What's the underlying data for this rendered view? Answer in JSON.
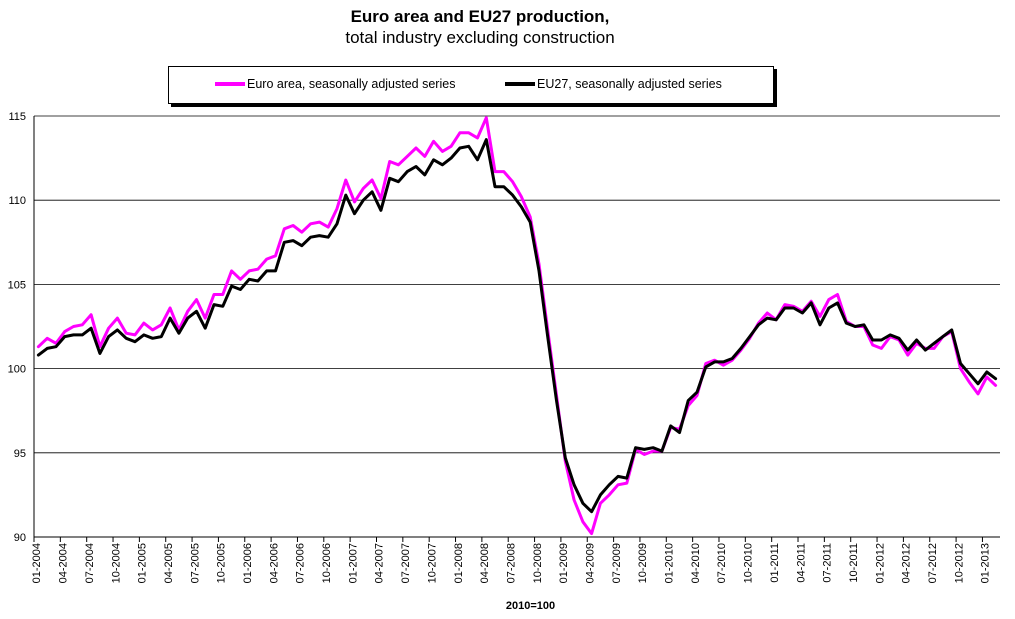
{
  "chart_data": {
    "type": "line",
    "title": "Euro area and EU27 production,",
    "subtitle": "total industry excluding construction",
    "xlabel": "2010=100",
    "ylabel": "",
    "ylim": [
      90,
      115
    ],
    "yticks": [
      90,
      95,
      100,
      105,
      110,
      115
    ],
    "grid": true,
    "legend_position": "top",
    "x_tick_labels": [
      "01-2004",
      "04-2004",
      "07-2004",
      "10-2004",
      "01-2005",
      "04-2005",
      "07-2005",
      "10-2005",
      "01-2006",
      "04-2006",
      "07-2006",
      "10-2006",
      "01-2007",
      "04-2007",
      "07-2007",
      "10-2007",
      "01-2008",
      "04-2008",
      "07-2008",
      "10-2008",
      "01-2009",
      "04-2009",
      "07-2009",
      "10-2009",
      "01-2010",
      "04-2010",
      "07-2010",
      "10-2010",
      "01-2011",
      "04-2011",
      "07-2011",
      "10-2011",
      "01-2012",
      "04-2012",
      "07-2012",
      "10-2012",
      "01-2013"
    ],
    "series": [
      {
        "name": "Euro area, seasonally adjusted series",
        "color": "#ff00ff",
        "values": [
          101.3,
          101.8,
          101.5,
          102.2,
          102.5,
          102.6,
          103.2,
          101.3,
          102.4,
          103.0,
          102.1,
          102.0,
          102.7,
          102.3,
          102.6,
          103.6,
          102.3,
          103.4,
          104.1,
          103.0,
          104.4,
          104.4,
          105.8,
          105.3,
          105.8,
          105.9,
          106.5,
          106.7,
          108.3,
          108.5,
          108.1,
          108.6,
          108.7,
          108.4,
          109.5,
          111.2,
          109.9,
          110.7,
          111.2,
          110.1,
          112.3,
          112.1,
          112.6,
          113.1,
          112.6,
          113.5,
          112.9,
          113.2,
          114.0,
          114.0,
          113.7,
          114.9,
          111.7,
          111.7,
          111.1,
          110.2,
          109.0,
          106.2,
          102.3,
          98.4,
          94.5,
          92.2,
          90.9,
          90.2,
          92.0,
          92.5,
          93.1,
          93.2,
          95.2,
          94.9,
          95.1,
          95.1,
          96.5,
          96.4,
          97.8,
          98.4,
          100.3,
          100.5,
          100.2,
          100.5,
          101.1,
          101.8,
          102.7,
          103.3,
          102.9,
          103.8,
          103.7,
          103.4,
          104.0,
          103.1,
          104.1,
          104.4,
          102.8,
          102.5,
          102.5,
          101.4,
          101.2,
          101.9,
          101.7,
          100.8,
          101.5,
          101.2,
          101.2,
          101.9,
          102.2,
          100.0,
          99.2,
          98.5,
          99.5,
          99.0
        ]
      },
      {
        "name": "EU27, seasonally adjusted series",
        "color": "#000000",
        "values": [
          100.8,
          101.2,
          101.3,
          101.9,
          102.0,
          102.0,
          102.4,
          100.9,
          101.9,
          102.3,
          101.8,
          101.6,
          102.0,
          101.8,
          101.9,
          103.0,
          102.1,
          103.0,
          103.4,
          102.4,
          103.8,
          103.7,
          104.9,
          104.7,
          105.3,
          105.2,
          105.8,
          105.8,
          107.5,
          107.6,
          107.3,
          107.8,
          107.9,
          107.8,
          108.6,
          110.3,
          109.2,
          110.0,
          110.5,
          109.4,
          111.3,
          111.1,
          111.7,
          112.0,
          111.5,
          112.4,
          112.1,
          112.5,
          113.1,
          113.2,
          112.4,
          113.6,
          110.8,
          110.8,
          110.3,
          109.6,
          108.7,
          105.8,
          101.9,
          98.1,
          94.7,
          93.1,
          92.0,
          91.5,
          92.5,
          93.1,
          93.6,
          93.5,
          95.3,
          95.2,
          95.3,
          95.1,
          96.6,
          96.2,
          98.1,
          98.6,
          100.1,
          100.4,
          100.4,
          100.6,
          101.2,
          101.9,
          102.6,
          103.0,
          102.9,
          103.6,
          103.6,
          103.3,
          103.9,
          102.6,
          103.6,
          103.9,
          102.7,
          102.5,
          102.6,
          101.7,
          101.7,
          102.0,
          101.8,
          101.1,
          101.7,
          101.1,
          101.5,
          101.9,
          102.3,
          100.3,
          99.7,
          99.1,
          99.8,
          99.4
        ]
      }
    ]
  }
}
